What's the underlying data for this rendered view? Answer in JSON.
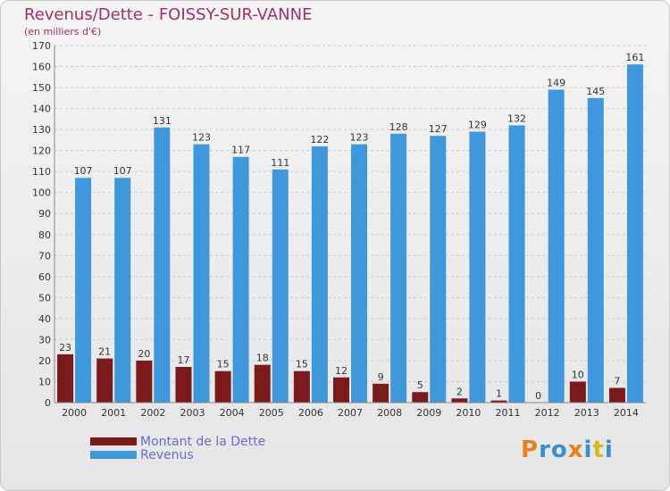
{
  "chart_data": {
    "type": "bar",
    "title": "Revenus/Dette - FOISSY-SUR-VANNE",
    "subtitle": "(en milliers d'€)",
    "categories": [
      "2000",
      "2001",
      "2002",
      "2003",
      "2004",
      "2005",
      "2006",
      "2007",
      "2008",
      "2009",
      "2010",
      "2011",
      "2012",
      "2013",
      "2014"
    ],
    "series": [
      {
        "name": "Montant de la Dette",
        "color": "#7a1a1a",
        "values": [
          23,
          21,
          20,
          17,
          15,
          18,
          15,
          12,
          9,
          5,
          2,
          1,
          0,
          10,
          7
        ]
      },
      {
        "name": "Revenus",
        "color": "#3f98dc",
        "values": [
          107,
          107,
          131,
          123,
          117,
          111,
          122,
          123,
          128,
          127,
          129,
          132,
          149,
          145,
          161
        ]
      }
    ],
    "ylim": [
      0,
      170
    ],
    "yticks": [
      0,
      10,
      20,
      30,
      40,
      50,
      60,
      70,
      80,
      90,
      100,
      110,
      120,
      130,
      140,
      150,
      160,
      170
    ],
    "grid": true,
    "legend_position": "bottom-left"
  },
  "brand": {
    "letters": [
      "P",
      "r",
      "o",
      "x",
      "i",
      "t",
      "i"
    ],
    "colors": [
      "#e8821e",
      "#3c8ed2",
      "#3c8ed2",
      "#e8821e",
      "#3c8ed2",
      "#d8b81c",
      "#3c8ed2"
    ]
  }
}
